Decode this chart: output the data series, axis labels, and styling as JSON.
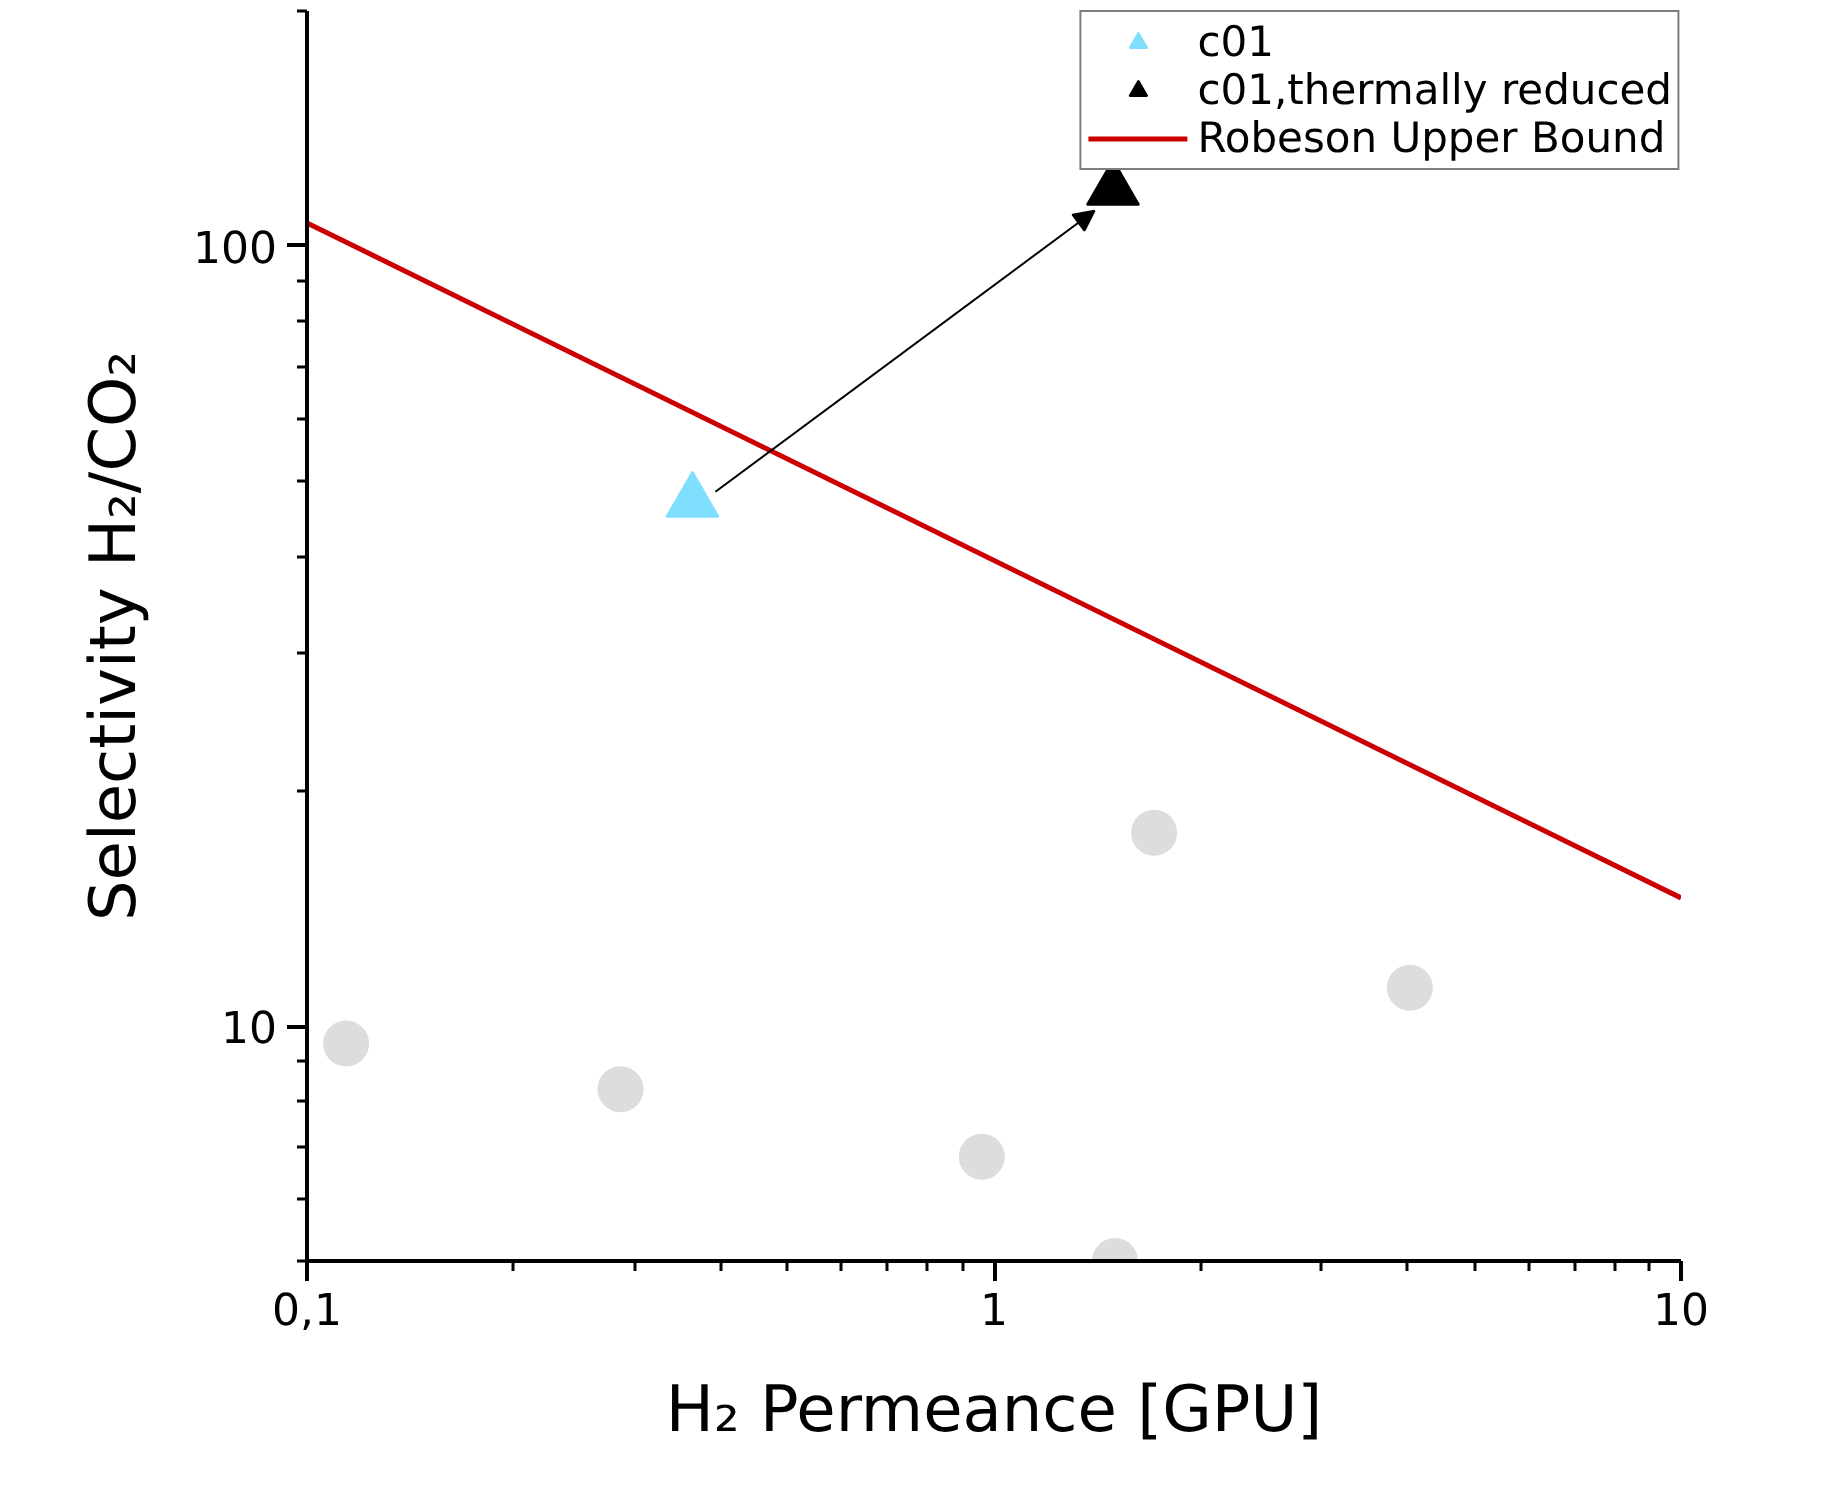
{
  "chart_data": {
    "type": "scatter",
    "xlabel": "H₂ Permeance [GPU]",
    "ylabel": "Selectivity H₂/CO₂",
    "log": "xy",
    "xlim": [
      0.1,
      10
    ],
    "ylim": [
      5,
      200
    ],
    "xticks": [
      {
        "value": 0.1,
        "label": "0,1"
      },
      1,
      10
    ],
    "yticks": [
      10,
      100
    ],
    "grid": false,
    "legend": "top right",
    "series": [
      {
        "marker": "circle",
        "color": "#dddddd",
        "x": [
          0.114,
          0.286,
          0.96,
          1.5,
          1.71,
          4.03
        ],
        "values": [
          9.5,
          8.3,
          6.8,
          5.0,
          17.7,
          11.2
        ]
      },
      {
        "name": "c01",
        "marker": "triangle",
        "color": "#80dfff",
        "x": [
          0.364
        ],
        "values": [
          47
        ]
      },
      {
        "name": "c01,thermally reduced",
        "marker": "triangle",
        "color": "#000000",
        "x": [
          1.49
        ],
        "values": [
          118
        ]
      },
      {
        "name": "Robeson Upper Bound",
        "type": "line",
        "color": "#cc0000",
        "x": [
          0.1,
          10
        ],
        "values": [
          107,
          14.6
        ]
      }
    ]
  }
}
